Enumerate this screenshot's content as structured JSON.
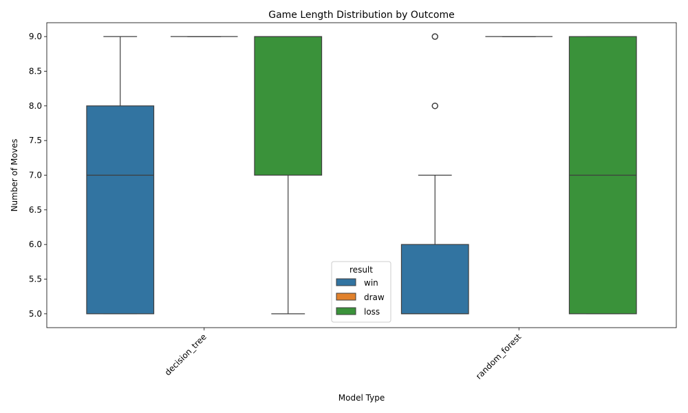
{
  "chart_data": {
    "type": "box",
    "title": "Game Length Distribution by Outcome",
    "xlabel": "Model Type",
    "ylabel": "Number of Moves",
    "categories": [
      "decision_tree",
      "random_forest"
    ],
    "ylim": [
      4.8,
      9.2
    ],
    "yticks": [
      "5.0",
      "5.5",
      "6.0",
      "6.5",
      "7.0",
      "7.5",
      "8.0",
      "8.5",
      "9.0"
    ],
    "grid": false,
    "legend": {
      "title": "result",
      "position": "bottom-center"
    },
    "series": [
      {
        "name": "win",
        "color": "#3274a1",
        "boxes": [
          {
            "category": "decision_tree",
            "whisker_low": 5,
            "q1": 5,
            "median": 7,
            "q3": 8,
            "whisker_high": 9,
            "outliers": []
          },
          {
            "category": "random_forest",
            "whisker_low": 5,
            "q1": 5,
            "median": 5,
            "q3": 6,
            "whisker_high": 7,
            "outliers": [
              8,
              9
            ]
          }
        ]
      },
      {
        "name": "draw",
        "color": "#e1812c",
        "boxes": [
          {
            "category": "decision_tree",
            "whisker_low": 9,
            "q1": 9,
            "median": 9,
            "q3": 9,
            "whisker_high": 9,
            "outliers": []
          },
          {
            "category": "random_forest",
            "whisker_low": 9,
            "q1": 9,
            "median": 9,
            "q3": 9,
            "whisker_high": 9,
            "outliers": []
          }
        ]
      },
      {
        "name": "loss",
        "color": "#3a923a",
        "boxes": [
          {
            "category": "decision_tree",
            "whisker_low": 5,
            "q1": 7,
            "median": 9,
            "q3": 9,
            "whisker_high": 9,
            "outliers": []
          },
          {
            "category": "random_forest",
            "whisker_low": 5,
            "q1": 5,
            "median": 7,
            "q3": 9,
            "whisker_high": 9,
            "outliers": []
          }
        ]
      }
    ]
  }
}
